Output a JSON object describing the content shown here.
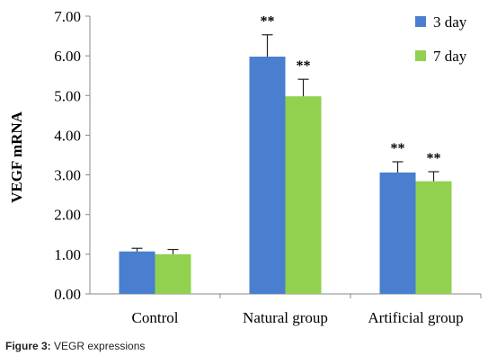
{
  "chart_data": {
    "type": "bar",
    "categories": [
      "Control",
      "Natural group",
      "Artificial group"
    ],
    "series": [
      {
        "name": "3 day",
        "color": "#4a7fcf",
        "values": [
          1.07,
          5.98,
          3.06
        ],
        "errors": [
          0.08,
          0.55,
          0.27
        ],
        "annotations": [
          "",
          "**",
          "**"
        ]
      },
      {
        "name": "7 day",
        "color": "#92d050",
        "values": [
          1.0,
          4.98,
          2.84
        ],
        "errors": [
          0.12,
          0.43,
          0.24
        ],
        "annotations": [
          "",
          "**",
          "**"
        ]
      }
    ],
    "ylabel": "VEGF mRNA",
    "xlabel": "",
    "ylim": [
      0,
      7
    ],
    "yticks": [
      "0.00",
      "1.00",
      "2.00",
      "3.00",
      "4.00",
      "5.00",
      "6.00",
      "7.00"
    ],
    "grid": false,
    "legend_position": "top-right"
  },
  "caption": {
    "label": "Figure 3:",
    "text": " VEGR expressions"
  }
}
